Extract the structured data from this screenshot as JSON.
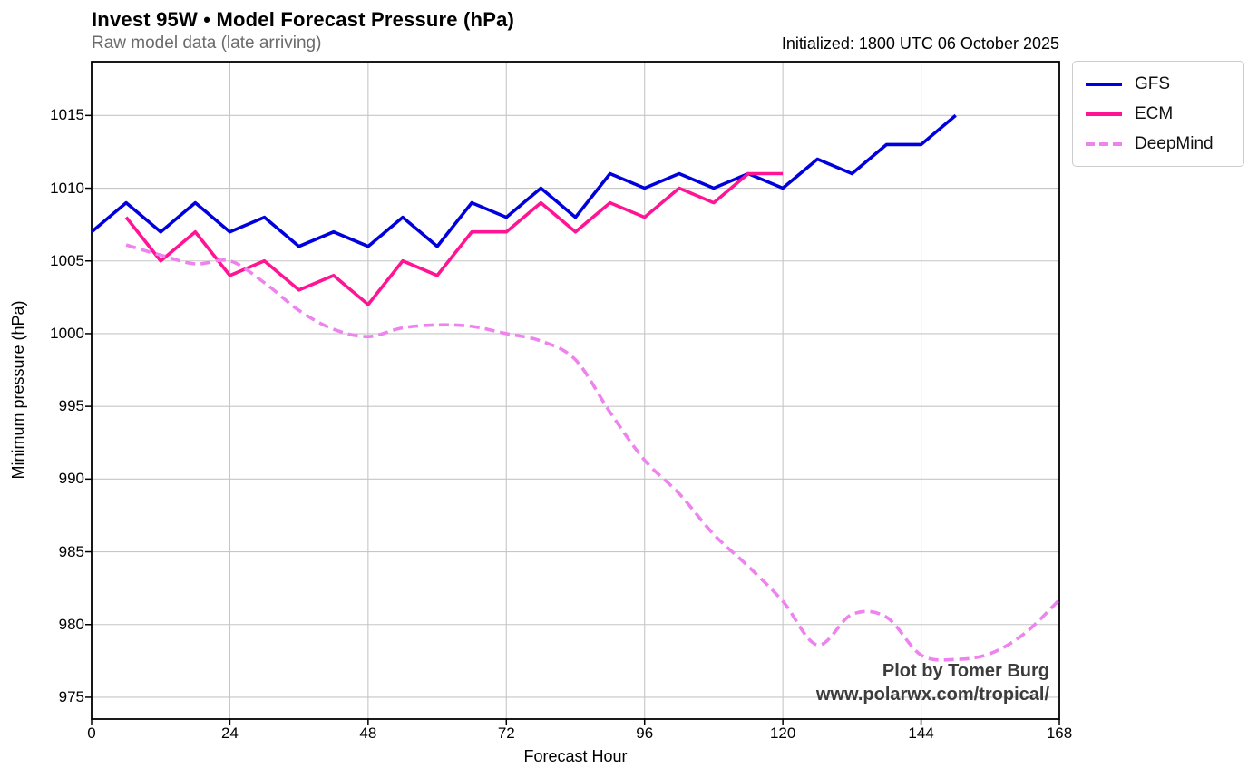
{
  "chart_data": {
    "type": "line",
    "title": "Invest 95W • Model Forecast Pressure (hPa)",
    "subtitle": "Raw model data (late arriving)",
    "initialized": "Initialized: 1800 UTC 06 October 2025",
    "xlabel": "Forecast Hour",
    "ylabel": "Minimum pressure (hPa)",
    "xlim": [
      0,
      168
    ],
    "ylim": [
      973.5,
      1018.7
    ],
    "xticks": [
      0,
      24,
      48,
      72,
      96,
      120,
      144,
      168
    ],
    "yticks": [
      975,
      980,
      985,
      990,
      995,
      1000,
      1005,
      1010,
      1015
    ],
    "grid": true,
    "grid_color": "#c6c6c6",
    "axis_color": "#000000",
    "legend_position": "outside upper right",
    "series": [
      {
        "name": "GFS",
        "color": "#0000dd",
        "style": "solid",
        "smooth": false,
        "x": [
          0,
          6,
          12,
          18,
          24,
          30,
          36,
          42,
          48,
          54,
          60,
          66,
          72,
          78,
          84,
          90,
          96,
          102,
          108,
          114,
          120,
          126,
          132,
          138,
          144,
          150
        ],
        "values": [
          1007,
          1009,
          1007,
          1009,
          1007,
          1008,
          1006,
          1007,
          1006,
          1008,
          1006,
          1009,
          1008,
          1010,
          1008,
          1011,
          1010,
          1011,
          1010,
          1011,
          1010,
          1012,
          1011,
          1013,
          1013,
          1015
        ]
      },
      {
        "name": "ECM",
        "color": "#ff1493",
        "style": "solid",
        "smooth": false,
        "x": [
          6,
          12,
          18,
          24,
          30,
          36,
          42,
          48,
          54,
          60,
          66,
          72,
          78,
          84,
          90,
          96,
          102,
          108,
          114,
          120
        ],
        "values": [
          1008,
          1005,
          1007,
          1004,
          1005,
          1003,
          1004,
          1002,
          1005,
          1004,
          1007,
          1007,
          1009,
          1007,
          1009,
          1008,
          1010,
          1009,
          1011,
          1011
        ]
      },
      {
        "name": "DeepMind",
        "color": "#ee82ee",
        "style": "dashed",
        "smooth": true,
        "x": [
          6,
          12,
          18,
          24,
          30,
          36,
          42,
          48,
          54,
          60,
          66,
          72,
          78,
          84,
          90,
          96,
          102,
          108,
          114,
          120,
          126,
          132,
          138,
          144,
          150,
          156,
          162,
          168
        ],
        "values": [
          1006.1,
          1005.4,
          1004.8,
          1005.0,
          1003.5,
          1001.6,
          1000.3,
          999.8,
          1000.4,
          1000.6,
          1000.5,
          1000.0,
          999.5,
          998.2,
          994.6,
          991.3,
          989.0,
          986.2,
          984.0,
          981.6,
          978.6,
          980.7,
          980.5,
          977.9,
          977.6,
          978.0,
          979.4,
          981.7
        ]
      }
    ],
    "watermark": [
      "Plot by Tomer Burg",
      "www.polarwx.com/tropical/"
    ]
  }
}
